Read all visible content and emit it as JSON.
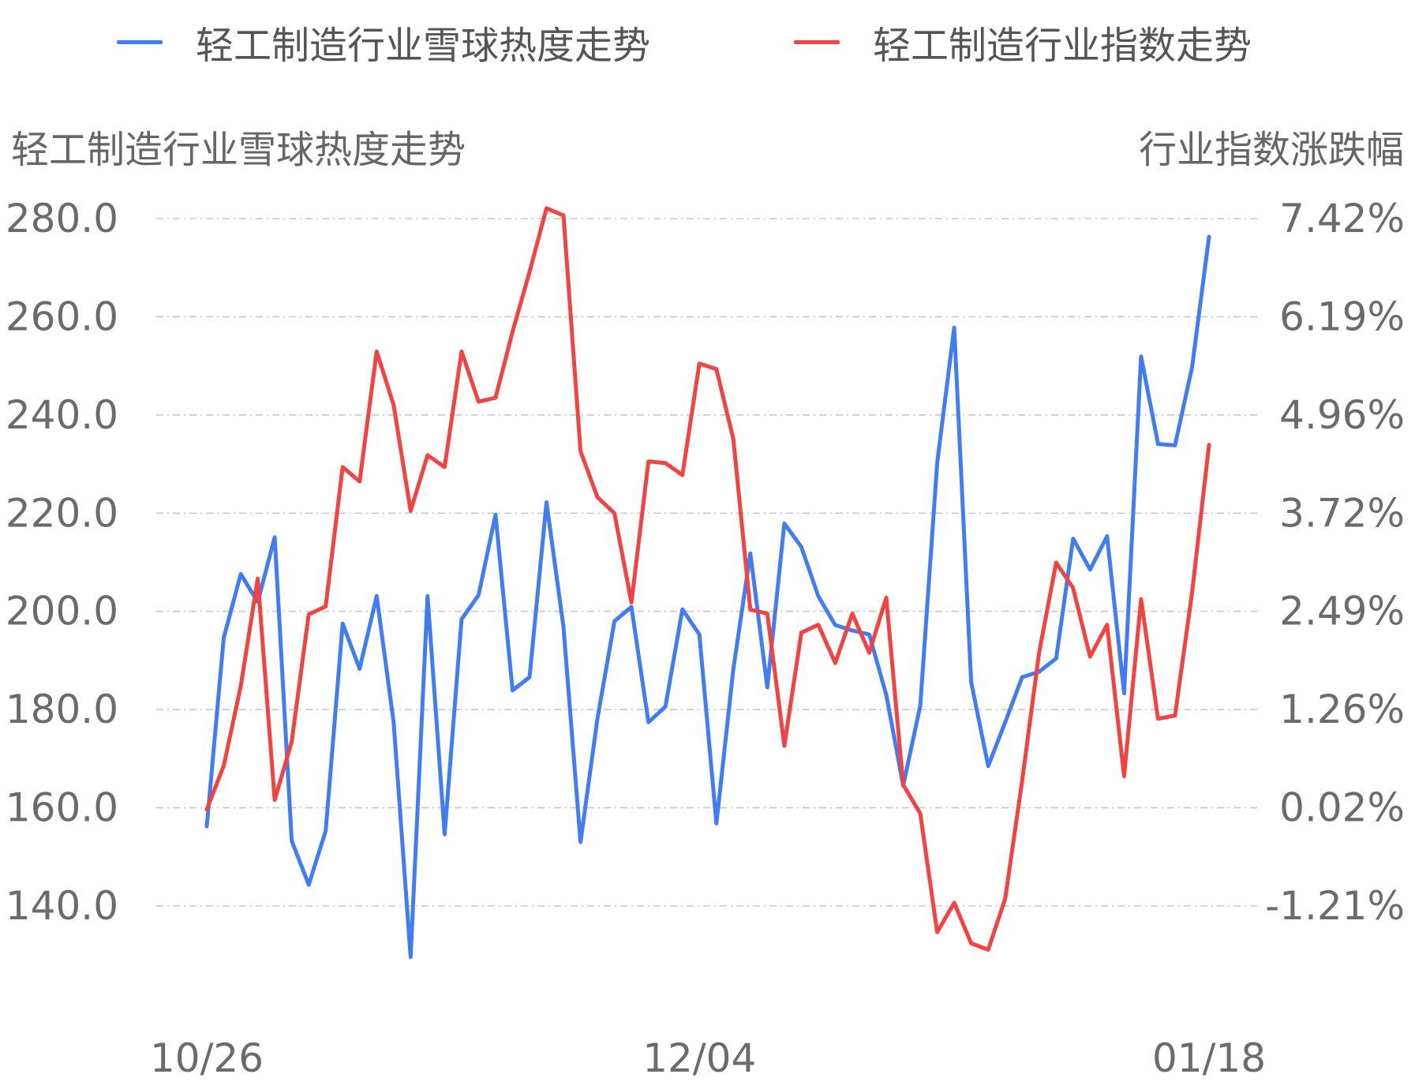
{
  "chart_data": {
    "type": "line",
    "legend": {
      "placement": "top",
      "items": [
        {
          "label": "轻工制造行业雪球热度走势",
          "color": "#3f7cf5"
        },
        {
          "label": "轻工制造行业指数走势",
          "color": "#f5413f"
        }
      ]
    },
    "y_left": {
      "title": "轻工制造行业雪球热度走势",
      "ticks": [
        "280.0",
        "260.0",
        "240.0",
        "220.0",
        "200.0",
        "180.0",
        "160.0",
        "140.0"
      ],
      "range": [
        140,
        280
      ]
    },
    "y_right": {
      "title": "行业指数涨跌幅",
      "ticks": [
        "7.42%",
        "6.19%",
        "4.96%",
        "3.72%",
        "2.49%",
        "1.26%",
        "0.02%",
        "-1.21%"
      ],
      "range": [
        -1.21,
        7.42
      ]
    },
    "x_ticks": [
      {
        "label": "10/26",
        "index": 0
      },
      {
        "label": "12/04",
        "index": 29
      },
      {
        "label": "01/18",
        "index": 59
      }
    ],
    "grid": "horizontal-dashed",
    "series": [
      {
        "name": "轻工制造行业雪球热度走势",
        "axis": "left",
        "color": "#3f7cf5",
        "values": [
          156.2,
          194.6,
          207.6,
          201.9,
          215.1,
          153.3,
          144.3,
          155.3,
          197.5,
          188.3,
          203.1,
          177.4,
          129.6,
          203.1,
          154.6,
          198.4,
          203.3,
          219.7,
          183.9,
          186.6,
          222.2,
          196.8,
          153.0,
          178.2,
          198.0,
          200.9,
          177.4,
          180.6,
          200.4,
          195.3,
          156.8,
          188.3,
          211.8,
          184.5,
          217.9,
          213.1,
          203.1,
          197.2,
          196.1,
          195.3,
          183.0,
          164.5,
          180.8,
          230.3,
          257.8,
          185.6,
          168.5,
          177.4,
          186.6,
          187.7,
          190.4,
          214.8,
          208.5,
          215.3,
          183.3,
          251.9,
          234.1,
          233.8,
          249.7,
          276.3
        ]
      },
      {
        "name": "轻工制造行业指数走势",
        "axis": "right",
        "color": "#f5413f",
        "values": [
          0.0,
          0.55,
          1.55,
          2.9,
          0.12,
          0.85,
          2.45,
          2.55,
          4.3,
          4.12,
          5.75,
          5.08,
          3.75,
          4.45,
          4.3,
          5.75,
          5.12,
          5.17,
          6.0,
          6.75,
          7.55,
          7.46,
          4.5,
          3.92,
          3.72,
          2.6,
          4.37,
          4.35,
          4.2,
          5.6,
          5.53,
          4.65,
          2.51,
          2.46,
          0.8,
          2.22,
          2.32,
          1.84,
          2.46,
          1.97,
          2.66,
          0.31,
          -0.05,
          -1.54,
          -1.17,
          -1.68,
          -1.76,
          -1.12,
          0.36,
          1.97,
          3.1,
          2.78,
          1.92,
          2.32,
          0.42,
          2.64,
          1.14,
          1.18,
          2.72,
          4.58
        ]
      }
    ]
  }
}
